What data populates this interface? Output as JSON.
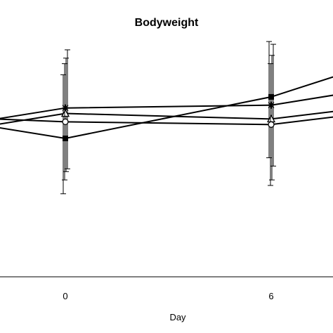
{
  "chart_data": {
    "type": "line",
    "title": "Bodyweight",
    "xlabel": "Day",
    "ylabel": "",
    "x_ticks": [
      0,
      6
    ],
    "x_range": [
      -2,
      8
    ],
    "y_range": [
      0,
      100
    ],
    "grid": false,
    "legend": "none",
    "series": [
      {
        "marker": "filled-square",
        "points": [
          {
            "x": -2,
            "y": 54
          },
          {
            "x": 0,
            "y": 50,
            "err_low": 30,
            "err_high": 73
          },
          {
            "x": 6,
            "y": 65,
            "err_low": 43,
            "err_high": 85
          },
          {
            "x": 8,
            "y": 73
          }
        ]
      },
      {
        "marker": "star",
        "points": [
          {
            "x": -2,
            "y": 57
          },
          {
            "x": 0,
            "y": 61,
            "err_low": 39,
            "err_high": 82
          },
          {
            "x": 6,
            "y": 62,
            "err_low": 40,
            "err_high": 84
          },
          {
            "x": 8,
            "y": 66
          }
        ]
      },
      {
        "marker": "open-triangle",
        "points": [
          {
            "x": -2,
            "y": 55
          },
          {
            "x": 0,
            "y": 59,
            "err_low": 38,
            "err_high": 79
          },
          {
            "x": 6,
            "y": 57,
            "err_low": 35,
            "err_high": 80
          },
          {
            "x": 8,
            "y": 60
          }
        ]
      },
      {
        "marker": "open-circle",
        "points": [
          {
            "x": -2,
            "y": 57
          },
          {
            "x": 0,
            "y": 56,
            "err_low": 35,
            "err_high": 77
          },
          {
            "x": 6,
            "y": 55,
            "err_low": 33,
            "err_high": 77
          },
          {
            "x": 8,
            "y": 58
          }
        ]
      }
    ]
  }
}
